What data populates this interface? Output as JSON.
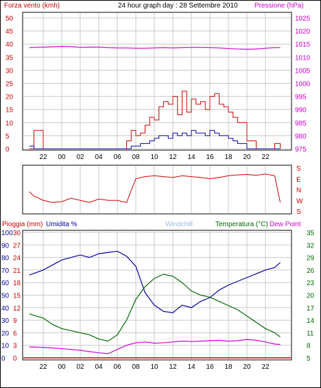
{
  "header": {
    "left": "Forza vento (kmh)",
    "center": "24 hour graph day : 28 Settembre 2010",
    "right": "Pressione (hPa)"
  },
  "lower_header": {
    "rain": "Pioggia (mm)",
    "humidity": "Umidita %",
    "windchill": "Windchill",
    "temperature": "Temperatura (°C)",
    "dewpoint": "Dew Point"
  },
  "hour_ticks": [
    "22",
    "00",
    "02",
    "04",
    "06",
    "08",
    "10",
    "12",
    "14",
    "16",
    "18",
    "20",
    "22"
  ],
  "colors": {
    "wind_axis": "#cc0000",
    "pressure": "#cc00cc",
    "rain": "#cc0000",
    "humidity": "#000099",
    "windchill": "#99bbdd",
    "temperature": "#006600",
    "dewpoint": "#cc00cc",
    "direction": "#cc0000",
    "grid": "#c8c8c8"
  },
  "chart_data": [
    {
      "type": "line",
      "name": "wind-pressure",
      "title": "24 hour graph day : 28 Settembre 2010",
      "x_ticks": [
        "22",
        "00",
        "02",
        "04",
        "06",
        "08",
        "10",
        "12",
        "14",
        "16",
        "18",
        "20",
        "22"
      ],
      "y_left": {
        "label": "Forza vento (kmh)",
        "range": [
          0,
          50
        ],
        "ticks": [
          0,
          5,
          10,
          15,
          20,
          25,
          30,
          35,
          40,
          45,
          50
        ]
      },
      "y_right": {
        "label": "Pressione (hPa)",
        "range": [
          975,
          1025
        ],
        "ticks": [
          975,
          980,
          985,
          990,
          995,
          1000,
          1005,
          1010,
          1015,
          1020,
          1025
        ]
      },
      "series": [
        {
          "name": "Pressione (hPa)",
          "axis": "right",
          "x": [
            20.5,
            21,
            22,
            23,
            24,
            25,
            26,
            27,
            28,
            29,
            30,
            31,
            32,
            33,
            34,
            35,
            36,
            37,
            38,
            39,
            40,
            41,
            42,
            43,
            44,
            45,
            46,
            47,
            47.6
          ],
          "y": [
            1013.6,
            1013.7,
            1013.8,
            1013.9,
            1014.1,
            1014,
            1013.7,
            1013.8,
            1013.8,
            1013.6,
            1013.5,
            1013.5,
            1013.4,
            1013.4,
            1013.5,
            1013.6,
            1013.5,
            1013.6,
            1013.7,
            1013.7,
            1013.6,
            1013.5,
            1013.3,
            1013.1,
            1013.0,
            1013.1,
            1013.4,
            1013.6,
            1013.6
          ]
        },
        {
          "name": "Gust",
          "axis": "left",
          "x": [
            20.5,
            21,
            22,
            24,
            26,
            28,
            30,
            31,
            31.5,
            32,
            32.5,
            33,
            33.5,
            34,
            34.5,
            35,
            35.5,
            36,
            36.5,
            37,
            37.5,
            38,
            38.5,
            39,
            39.5,
            40,
            40.5,
            41,
            41.5,
            42,
            42.5,
            43,
            44,
            45,
            46,
            47,
            47.6
          ],
          "y": [
            0,
            7,
            0,
            0,
            0,
            0,
            0,
            3,
            7,
            5,
            6,
            9,
            12,
            11,
            16,
            18,
            17,
            20,
            13,
            22,
            14,
            19,
            17,
            18,
            15,
            20,
            21,
            17,
            16,
            14,
            12,
            10,
            3,
            0,
            0,
            2,
            0
          ]
        },
        {
          "name": "Average",
          "axis": "left",
          "x": [
            20.5,
            21,
            22,
            24,
            26,
            28,
            30,
            31,
            31.5,
            32,
            32.5,
            33,
            33.5,
            34,
            34.5,
            35,
            35.5,
            36,
            36.5,
            37,
            37.5,
            38,
            38.5,
            39,
            39.5,
            40,
            40.5,
            41,
            41.5,
            42,
            42.5,
            43,
            44,
            45,
            46,
            47,
            47.6
          ],
          "y": [
            1,
            0,
            0,
            0,
            0,
            0,
            0,
            0,
            1,
            1,
            2,
            2,
            3,
            4,
            5,
            5,
            4,
            6,
            5,
            6,
            5,
            7,
            6,
            6,
            5,
            7,
            6,
            5,
            5,
            4,
            3,
            2,
            0,
            0,
            0,
            0,
            0
          ]
        }
      ]
    },
    {
      "type": "line",
      "name": "wind-direction",
      "y_right": {
        "ticks": [
          "S",
          "E",
          "N",
          "W",
          "S"
        ]
      },
      "series": [
        {
          "name": "Direction",
          "x": [
            20.5,
            21,
            22,
            23,
            24,
            25,
            26,
            27,
            28,
            29,
            30,
            31,
            32,
            33,
            34,
            35,
            36,
            37,
            38,
            39,
            40,
            41,
            42,
            43,
            44,
            45,
            46,
            47,
            47.6
          ],
          "y": [
            0.45,
            0.35,
            0.25,
            0.2,
            0.22,
            0.3,
            0.25,
            0.2,
            0.28,
            0.25,
            0.25,
            0.2,
            0.75,
            0.8,
            0.82,
            0.8,
            0.78,
            0.82,
            0.8,
            0.78,
            0.75,
            0.78,
            0.82,
            0.84,
            0.85,
            0.83,
            0.86,
            0.82,
            0.2
          ]
        }
      ]
    },
    {
      "type": "line",
      "name": "rain-humidity-temperature",
      "x_ticks": [
        "22",
        "00",
        "02",
        "04",
        "06",
        "08",
        "10",
        "12",
        "14",
        "16",
        "18",
        "20",
        "22"
      ],
      "y_left_rain": {
        "label": "Pioggia (mm)",
        "range": [
          0,
          30
        ],
        "ticks": [
          0,
          3,
          6,
          9,
          12,
          15,
          18,
          21,
          24,
          27,
          30
        ]
      },
      "y_left_humidity": {
        "label": "Umidita %",
        "range": [
          0,
          100
        ],
        "ticks": [
          0,
          10,
          20,
          30,
          40,
          50,
          60,
          70,
          80,
          90,
          100
        ]
      },
      "y_right": {
        "label": "Temperatura (°C)",
        "range": [
          5,
          35
        ],
        "ticks": [
          5,
          8,
          11,
          14,
          17,
          20,
          23,
          26,
          29,
          32,
          35
        ]
      },
      "series": [
        {
          "name": "Umidita %",
          "x": [
            20.5,
            22,
            24,
            25,
            26,
            27,
            28,
            29,
            30,
            31,
            32,
            33,
            34,
            35,
            36,
            37,
            38,
            39,
            40,
            41,
            42,
            43,
            44,
            45,
            46,
            47,
            47.6
          ],
          "y": [
            66,
            70,
            78,
            80,
            82,
            80,
            83,
            84,
            85,
            81,
            73,
            52,
            42,
            37,
            36,
            42,
            40,
            45,
            48,
            54,
            58,
            61,
            64,
            67,
            70,
            72,
            76
          ]
        },
        {
          "name": "Temperatura (°C)",
          "x": [
            20.5,
            22,
            23,
            24,
            25,
            26,
            27,
            28,
            29,
            30,
            31,
            32,
            33,
            34,
            35,
            36,
            37,
            38,
            39,
            40,
            41,
            42,
            43,
            44,
            45,
            46,
            47,
            47.6
          ],
          "y": [
            15.5,
            14.5,
            13,
            12,
            11.5,
            11,
            10.5,
            9.5,
            9,
            10.5,
            14,
            19,
            22,
            24,
            25,
            24.5,
            23,
            21,
            20,
            19.5,
            18.5,
            17.5,
            16.5,
            15,
            13.5,
            12,
            11,
            10
          ]
        },
        {
          "name": "Dew Point",
          "x": [
            20.5,
            22,
            24,
            26,
            28,
            29,
            30,
            31,
            32,
            33,
            34,
            35,
            36,
            37,
            38,
            39,
            40,
            41,
            42,
            43,
            44,
            45,
            46,
            47,
            47.6
          ],
          "y": [
            7.6,
            7.5,
            7.2,
            6.8,
            6.2,
            6.0,
            7.0,
            8.0,
            8.6,
            8.8,
            8.5,
            8.6,
            8.8,
            9.0,
            8.9,
            9.0,
            9.1,
            9.2,
            9.0,
            9.1,
            9.4,
            9.2,
            8.8,
            8.3,
            8.2
          ]
        }
      ]
    }
  ]
}
